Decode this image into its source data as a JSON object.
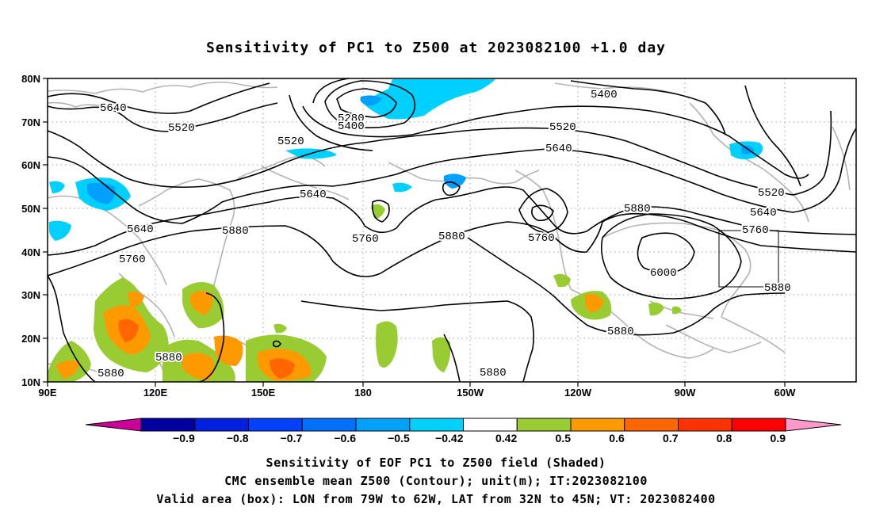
{
  "title": "Sensitivity of PC1 to Z500 at 2023082100 +1.0 day",
  "lat_labels": [
    "80N",
    "70N",
    "60N",
    "50N",
    "40N",
    "30N",
    "20N",
    "10N"
  ],
  "lon_labels": [
    "90E",
    "120E",
    "150E",
    "180",
    "150W",
    "120W",
    "90W",
    "60W"
  ],
  "contour_labels": [
    {
      "text": "5640"
    },
    {
      "text": "5520"
    },
    {
      "text": "5520"
    },
    {
      "text": "5280"
    },
    {
      "text": "5400"
    },
    {
      "text": "5400"
    },
    {
      "text": "5520"
    },
    {
      "text": "5640"
    },
    {
      "text": "5640"
    },
    {
      "text": "5520"
    },
    {
      "text": "5640"
    },
    {
      "text": "5640"
    },
    {
      "text": "5760"
    },
    {
      "text": "5880"
    },
    {
      "text": "5760"
    },
    {
      "text": "5880"
    },
    {
      "text": "5760"
    },
    {
      "text": "5880"
    },
    {
      "text": "5760"
    },
    {
      "text": "6000"
    },
    {
      "text": "5880"
    },
    {
      "text": "5880"
    },
    {
      "text": "5880"
    },
    {
      "text": "5880"
    },
    {
      "text": "5880"
    }
  ],
  "colorbar": {
    "colors": [
      "#0000a0",
      "#0020e0",
      "#0040ff",
      "#0070ff",
      "#00a0ff",
      "#00d0ff",
      "#ffffff",
      "#99cc33",
      "#ff9900",
      "#ff6600",
      "#ff3300",
      "#ff0000"
    ],
    "low_arrow_color": "#cc0099",
    "high_arrow_color": "#ff99cc",
    "tick_labels": [
      "−0.9",
      "−0.8",
      "−0.7",
      "−0.6",
      "−0.5",
      "−0.42",
      "0.42",
      "0.5",
      "0.6",
      "0.7",
      "0.8",
      "0.9"
    ]
  },
  "caption": {
    "line1": "Sensitivity of EOF PC1 to Z500 field (Shaded)",
    "line2": "CMC ensemble mean Z500 (Contour); unit(m); IT:2023082100",
    "line3": "Valid area (box): LON from 79W to 62W, LAT from 32N to 45N; VT: 2023082400"
  }
}
